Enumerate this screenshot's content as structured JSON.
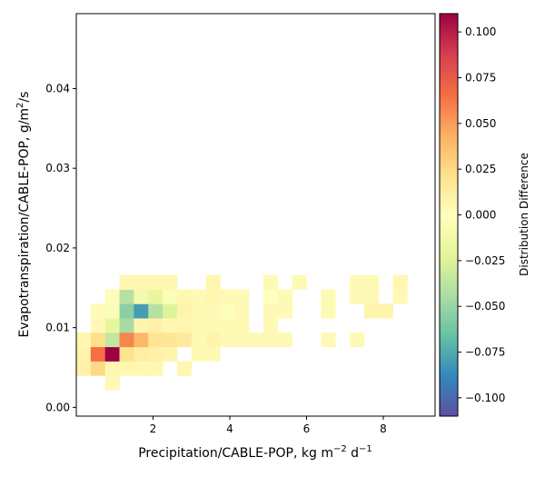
{
  "chart_data": {
    "type": "heatmap",
    "xlabel_main": "Precipitation/CABLE-POP,  kg m",
    "xlabel_sup1": "−2",
    "xlabel_mid": " d",
    "xlabel_sup2": "−1",
    "ylabel_main": "Evapotranspiration/CABLE-POP,  g/m",
    "ylabel_sup": "2",
    "ylabel_tail": "/s",
    "colorbar_label": "Distribution Difference",
    "xlim": [
      0.0,
      9.35
    ],
    "ylim": [
      -0.0011,
      0.0494
    ],
    "x_ticks": [
      2,
      4,
      6,
      8
    ],
    "x_tick_labels": [
      "2",
      "4",
      "6",
      "8"
    ],
    "y_ticks": [
      0.0,
      0.01,
      0.02,
      0.03,
      0.04
    ],
    "y_tick_labels": [
      "0.00",
      "0.01",
      "0.02",
      "0.03",
      "0.04"
    ],
    "colorbar_range": [
      -0.11,
      0.11
    ],
    "colorbar_ticks": [
      0.1,
      0.075,
      0.05,
      0.025,
      0.0,
      -0.025,
      -0.05,
      -0.075,
      -0.1
    ],
    "colorbar_tick_labels": [
      "0.100",
      "0.075",
      "0.050",
      "0.025",
      "0.000",
      "−0.025",
      "−0.050",
      "−0.075",
      "−0.100"
    ],
    "colormap": "Spectral_r",
    "bin_width_x": 0.375,
    "bin_height_y": 0.0018,
    "cells": [
      {
        "x0": 0.0,
        "y0": 0.004,
        "v": 0.01
      },
      {
        "x0": 0.0,
        "y0": 0.0058,
        "v": 0.008
      },
      {
        "x0": 0.0,
        "y0": 0.0076,
        "v": 0.006
      },
      {
        "x0": 0.375,
        "y0": 0.004,
        "v": 0.025
      },
      {
        "x0": 0.375,
        "y0": 0.0058,
        "v": 0.065
      },
      {
        "x0": 0.375,
        "y0": 0.0076,
        "v": 0.022
      },
      {
        "x0": 0.375,
        "y0": 0.0094,
        "v": 0.004
      },
      {
        "x0": 0.375,
        "y0": 0.0112,
        "v": 0.003
      },
      {
        "x0": 0.75,
        "y0": 0.0022,
        "v": 0.004
      },
      {
        "x0": 0.75,
        "y0": 0.004,
        "v": 0.006
      },
      {
        "x0": 0.75,
        "y0": 0.0058,
        "v": 0.11
      },
      {
        "x0": 0.75,
        "y0": 0.0076,
        "v": -0.035
      },
      {
        "x0": 0.75,
        "y0": 0.0094,
        "v": -0.02
      },
      {
        "x0": 0.75,
        "y0": 0.0112,
        "v": -0.005
      },
      {
        "x0": 0.75,
        "y0": 0.013,
        "v": 0.003
      },
      {
        "x0": 1.125,
        "y0": 0.004,
        "v": 0.006
      },
      {
        "x0": 1.125,
        "y0": 0.0058,
        "v": 0.02
      },
      {
        "x0": 1.125,
        "y0": 0.0076,
        "v": 0.058
      },
      {
        "x0": 1.125,
        "y0": 0.0094,
        "v": -0.045
      },
      {
        "x0": 1.125,
        "y0": 0.0112,
        "v": -0.055
      },
      {
        "x0": 1.125,
        "y0": 0.013,
        "v": -0.04
      },
      {
        "x0": 1.125,
        "y0": 0.0148,
        "v": 0.006
      },
      {
        "x0": 1.5,
        "y0": 0.004,
        "v": 0.006
      },
      {
        "x0": 1.5,
        "y0": 0.0058,
        "v": 0.012
      },
      {
        "x0": 1.5,
        "y0": 0.0076,
        "v": 0.04
      },
      {
        "x0": 1.5,
        "y0": 0.0094,
        "v": 0.008
      },
      {
        "x0": 1.5,
        "y0": 0.0112,
        "v": -0.08
      },
      {
        "x0": 1.5,
        "y0": 0.013,
        "v": -0.01
      },
      {
        "x0": 1.5,
        "y0": 0.0148,
        "v": 0.006
      },
      {
        "x0": 1.875,
        "y0": 0.004,
        "v": 0.006
      },
      {
        "x0": 1.875,
        "y0": 0.0058,
        "v": 0.01
      },
      {
        "x0": 1.875,
        "y0": 0.0076,
        "v": 0.018
      },
      {
        "x0": 1.875,
        "y0": 0.0094,
        "v": 0.01
      },
      {
        "x0": 1.875,
        "y0": 0.0112,
        "v": -0.04
      },
      {
        "x0": 1.875,
        "y0": 0.013,
        "v": -0.02
      },
      {
        "x0": 1.875,
        "y0": 0.0148,
        "v": 0.006
      },
      {
        "x0": 2.25,
        "y0": 0.0058,
        "v": 0.008
      },
      {
        "x0": 2.25,
        "y0": 0.0076,
        "v": 0.018
      },
      {
        "x0": 2.25,
        "y0": 0.0094,
        "v": 0.006
      },
      {
        "x0": 2.25,
        "y0": 0.0112,
        "v": -0.025
      },
      {
        "x0": 2.25,
        "y0": 0.013,
        "v": -0.005
      },
      {
        "x0": 2.25,
        "y0": 0.0148,
        "v": 0.006
      },
      {
        "x0": 2.625,
        "y0": 0.004,
        "v": 0.006
      },
      {
        "x0": 2.625,
        "y0": 0.0076,
        "v": 0.015
      },
      {
        "x0": 2.625,
        "y0": 0.0094,
        "v": 0.006
      },
      {
        "x0": 2.625,
        "y0": 0.0112,
        "v": 0.008
      },
      {
        "x0": 2.625,
        "y0": 0.013,
        "v": 0.006
      },
      {
        "x0": 3.0,
        "y0": 0.0058,
        "v": 0.004
      },
      {
        "x0": 3.0,
        "y0": 0.0076,
        "v": 0.004
      },
      {
        "x0": 3.0,
        "y0": 0.0094,
        "v": 0.004
      },
      {
        "x0": 3.0,
        "y0": 0.0112,
        "v": 0.004
      },
      {
        "x0": 3.0,
        "y0": 0.013,
        "v": 0.004
      },
      {
        "x0": 3.375,
        "y0": 0.0058,
        "v": 0.004
      },
      {
        "x0": 3.375,
        "y0": 0.0076,
        "v": 0.008
      },
      {
        "x0": 3.375,
        "y0": 0.0094,
        "v": 0.004
      },
      {
        "x0": 3.375,
        "y0": 0.0112,
        "v": 0.004
      },
      {
        "x0": 3.375,
        "y0": 0.013,
        "v": 0.006
      },
      {
        "x0": 3.375,
        "y0": 0.0148,
        "v": 0.006
      },
      {
        "x0": 3.75,
        "y0": 0.0076,
        "v": 0.004
      },
      {
        "x0": 3.75,
        "y0": 0.0094,
        "v": 0.004
      },
      {
        "x0": 3.75,
        "y0": 0.0112,
        "v": -0.002
      },
      {
        "x0": 3.75,
        "y0": 0.013,
        "v": 0.004
      },
      {
        "x0": 4.125,
        "y0": 0.0076,
        "v": 0.004
      },
      {
        "x0": 4.125,
        "y0": 0.0094,
        "v": 0.004
      },
      {
        "x0": 4.125,
        "y0": 0.0112,
        "v": 0.004
      },
      {
        "x0": 4.125,
        "y0": 0.013,
        "v": 0.004
      },
      {
        "x0": 4.5,
        "y0": 0.0076,
        "v": 0.004
      },
      {
        "x0": 4.875,
        "y0": 0.0076,
        "v": 0.004
      },
      {
        "x0": 4.875,
        "y0": 0.0094,
        "v": 0.004
      },
      {
        "x0": 4.875,
        "y0": 0.0112,
        "v": 0.004
      },
      {
        "x0": 4.875,
        "y0": 0.013,
        "v": 0.0
      },
      {
        "x0": 4.875,
        "y0": 0.0148,
        "v": 0.004
      },
      {
        "x0": 5.25,
        "y0": 0.0076,
        "v": 0.004
      },
      {
        "x0": 5.25,
        "y0": 0.0112,
        "v": 0.004
      },
      {
        "x0": 5.25,
        "y0": 0.013,
        "v": 0.004
      },
      {
        "x0": 5.625,
        "y0": 0.0148,
        "v": 0.004
      },
      {
        "x0": 6.375,
        "y0": 0.0076,
        "v": 0.004
      },
      {
        "x0": 6.375,
        "y0": 0.0112,
        "v": 0.004
      },
      {
        "x0": 6.375,
        "y0": 0.013,
        "v": 0.004
      },
      {
        "x0": 7.125,
        "y0": 0.0076,
        "v": 0.004
      },
      {
        "x0": 7.125,
        "y0": 0.013,
        "v": 0.004
      },
      {
        "x0": 7.125,
        "y0": 0.0148,
        "v": 0.004
      },
      {
        "x0": 7.5,
        "y0": 0.0112,
        "v": 0.008
      },
      {
        "x0": 7.5,
        "y0": 0.013,
        "v": 0.004
      },
      {
        "x0": 7.5,
        "y0": 0.0148,
        "v": 0.004
      },
      {
        "x0": 7.875,
        "y0": 0.0112,
        "v": 0.008
      },
      {
        "x0": 8.25,
        "y0": 0.013,
        "v": 0.004
      },
      {
        "x0": 8.25,
        "y0": 0.0148,
        "v": 0.006
      }
    ]
  }
}
